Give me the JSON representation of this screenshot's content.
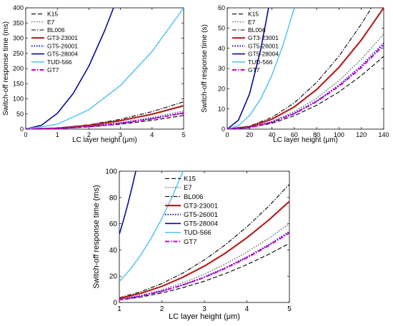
{
  "colors": {
    "K15": "#000000",
    "E7": "#333333",
    "BL006": "#000000",
    "GT3-23001": "#b22222",
    "GT5-26001": "#0000cc",
    "GT5-28004": "#0a0a9a",
    "TUD-566": "#5cc8f0",
    "GT7": "#cc00cc"
  },
  "chart_data": [
    {
      "type": "line",
      "panel": "top-left",
      "xlabel": "LC layer height (μm)",
      "ylabel": "Switch-off response time (ms)",
      "xlim": [
        0,
        5
      ],
      "ylim": [
        0,
        400
      ],
      "xticks": [
        "0",
        "1",
        "2",
        "3",
        "4",
        "5"
      ],
      "yticks": [
        "0",
        "50",
        "100",
        "150",
        "200",
        "250",
        "300",
        "350",
        "400"
      ],
      "legend_position": "top-left",
      "grid": false,
      "series": [
        {
          "name": "K15",
          "style": "dash",
          "x": [
            0,
            1,
            2,
            3,
            4,
            5
          ],
          "y": [
            0,
            1.8,
            7.2,
            16.2,
            28.8,
            45
          ]
        },
        {
          "name": "E7",
          "style": "dot",
          "x": [
            0,
            1,
            2,
            3,
            4,
            5
          ],
          "y": [
            0,
            2.4,
            9.6,
            21.6,
            38.4,
            60
          ]
        },
        {
          "name": "BL006",
          "style": "dashdot",
          "x": [
            0,
            1,
            2,
            3,
            4,
            5
          ],
          "y": [
            0,
            3.6,
            14.4,
            32.4,
            57.6,
            90
          ]
        },
        {
          "name": "GT3-23001",
          "style": "solid-thick",
          "x": [
            0,
            1,
            2,
            3,
            4,
            5
          ],
          "y": [
            0,
            3.1,
            12.3,
            27.7,
            49.3,
            77
          ]
        },
        {
          "name": "GT5-26001",
          "style": "dot-thick",
          "x": [
            0,
            1,
            2,
            3,
            4,
            5
          ],
          "y": [
            0,
            2.2,
            8.6,
            19.4,
            34.6,
            54
          ]
        },
        {
          "name": "GT5-28004",
          "style": "solid",
          "x": [
            0,
            0.5,
            1,
            1.5,
            2,
            2.5,
            2.78
          ],
          "y": [
            0,
            13,
            52,
            117,
            208,
            325,
            400
          ]
        },
        {
          "name": "TUD-566",
          "style": "solid",
          "x": [
            0,
            1,
            2,
            3,
            4,
            5
          ],
          "y": [
            0,
            16,
            64,
            144,
            256,
            400
          ]
        },
        {
          "name": "GT7",
          "style": "dashdot-thick",
          "x": [
            0,
            1,
            2,
            3,
            4,
            5
          ],
          "y": [
            0,
            2.1,
            8.5,
            19.1,
            34,
            53
          ]
        }
      ]
    },
    {
      "type": "line",
      "panel": "top-right",
      "xlabel": "LC layer height (μm)",
      "ylabel": "Switch-off response time (s)",
      "xlim": [
        0,
        140
      ],
      "ylim": [
        0,
        60
      ],
      "xticks": [
        "0",
        "20",
        "40",
        "60",
        "80",
        "100",
        "120",
        "140"
      ],
      "yticks": [
        "0",
        "10",
        "20",
        "30",
        "40",
        "50",
        "60"
      ],
      "legend_position": "top-left",
      "grid": false,
      "series": [
        {
          "name": "K15",
          "style": "dash",
          "x": [
            0,
            20,
            40,
            60,
            80,
            100,
            120,
            140
          ],
          "y": [
            0,
            0.7,
            2.9,
            6.6,
            11.8,
            18.4,
            26.5,
            36
          ]
        },
        {
          "name": "E7",
          "style": "dot",
          "x": [
            0,
            20,
            40,
            60,
            80,
            100,
            120,
            140
          ],
          "y": [
            0,
            0.9,
            3.8,
            8.6,
            15.3,
            24,
            34.6,
            47
          ]
        },
        {
          "name": "BL006",
          "style": "dashdot",
          "x": [
            0,
            20,
            40,
            60,
            80,
            100,
            120,
            129
          ],
          "y": [
            0,
            1.5,
            5.8,
            13.0,
            23.1,
            36.1,
            52.0,
            60
          ]
        },
        {
          "name": "GT3-23001",
          "style": "solid-thick",
          "x": [
            0,
            20,
            40,
            60,
            80,
            100,
            120,
            140
          ],
          "y": [
            0,
            1.2,
            4.9,
            11.0,
            19.6,
            30.6,
            44.1,
            60
          ]
        },
        {
          "name": "GT5-26001",
          "style": "dot-thick",
          "x": [
            0,
            20,
            40,
            60,
            80,
            100,
            120,
            140
          ],
          "y": [
            0,
            0.9,
            3.5,
            7.8,
            13.9,
            21.7,
            31.3,
            42.5
          ]
        },
        {
          "name": "GT5-28004",
          "style": "solid",
          "x": [
            0,
            10,
            20,
            30,
            37
          ],
          "y": [
            0,
            4.4,
            17.5,
            39.4,
            60
          ]
        },
        {
          "name": "TUD-566",
          "style": "solid",
          "x": [
            0,
            10,
            20,
            30,
            40,
            50,
            60
          ],
          "y": [
            0,
            1.7,
            6.7,
            15,
            26.7,
            41.7,
            60
          ]
        },
        {
          "name": "GT7",
          "style": "dashdot-thick",
          "x": [
            0,
            20,
            40,
            60,
            80,
            100,
            120,
            140
          ],
          "y": [
            0,
            0.8,
            3.4,
            7.6,
            13.6,
            21.2,
            30.5,
            41.5
          ]
        }
      ]
    },
    {
      "type": "line",
      "panel": "bottom",
      "xlabel": "LC layer height (μm)",
      "ylabel": "Switch-off response time (ms)",
      "xlim": [
        1,
        5
      ],
      "ylim": [
        0,
        100
      ],
      "xticks": [
        "1",
        "2",
        "3",
        "4",
        "5"
      ],
      "yticks": [
        "0",
        "20",
        "40",
        "60",
        "80",
        "100"
      ],
      "legend_position": "top-right",
      "grid": false,
      "series": [
        {
          "name": "K15",
          "style": "dash",
          "x": [
            1,
            1.5,
            2,
            2.5,
            3,
            3.5,
            4,
            4.5,
            5
          ],
          "y": [
            1.8,
            4.1,
            7.2,
            11.3,
            16.2,
            22.1,
            28.8,
            36.5,
            45
          ]
        },
        {
          "name": "E7",
          "style": "dot",
          "x": [
            1,
            1.5,
            2,
            2.5,
            3,
            3.5,
            4,
            4.5,
            5
          ],
          "y": [
            2.4,
            5.4,
            9.6,
            15,
            21.6,
            29.4,
            38.4,
            48.6,
            60
          ]
        },
        {
          "name": "BL006",
          "style": "dashdot",
          "x": [
            1,
            1.5,
            2,
            2.5,
            3,
            3.5,
            4,
            4.5,
            5
          ],
          "y": [
            3.6,
            8.1,
            14.4,
            22.5,
            32.4,
            44.1,
            57.6,
            72.9,
            90
          ]
        },
        {
          "name": "GT3-23001",
          "style": "solid-thick",
          "x": [
            1,
            1.5,
            2,
            2.5,
            3,
            3.5,
            4,
            4.5,
            5
          ],
          "y": [
            3.1,
            6.9,
            12.3,
            19.3,
            27.7,
            37.7,
            49.3,
            62.4,
            77
          ]
        },
        {
          "name": "GT5-26001",
          "style": "dot-thick",
          "x": [
            1,
            1.5,
            2,
            2.5,
            3,
            3.5,
            4,
            4.5,
            5
          ],
          "y": [
            2.2,
            4.9,
            8.6,
            13.5,
            19.4,
            26.5,
            34.6,
            43.7,
            54
          ]
        },
        {
          "name": "GT5-28004",
          "style": "solid",
          "x": [
            1,
            1.1,
            1.2,
            1.3,
            1.387
          ],
          "y": [
            52,
            62.9,
            74.9,
            87.9,
            100
          ]
        },
        {
          "name": "TUD-566",
          "style": "solid",
          "x": [
            1,
            1.25,
            1.5,
            1.75,
            2,
            2.25,
            2.5
          ],
          "y": [
            16,
            25,
            36,
            49,
            64,
            81,
            100
          ]
        },
        {
          "name": "GT7",
          "style": "dashdot-thick",
          "x": [
            1,
            1.5,
            2,
            2.5,
            3,
            3.5,
            4,
            4.5,
            5
          ],
          "y": [
            2.1,
            4.8,
            8.5,
            13.3,
            19.1,
            26,
            34,
            43,
            53
          ]
        }
      ]
    }
  ]
}
